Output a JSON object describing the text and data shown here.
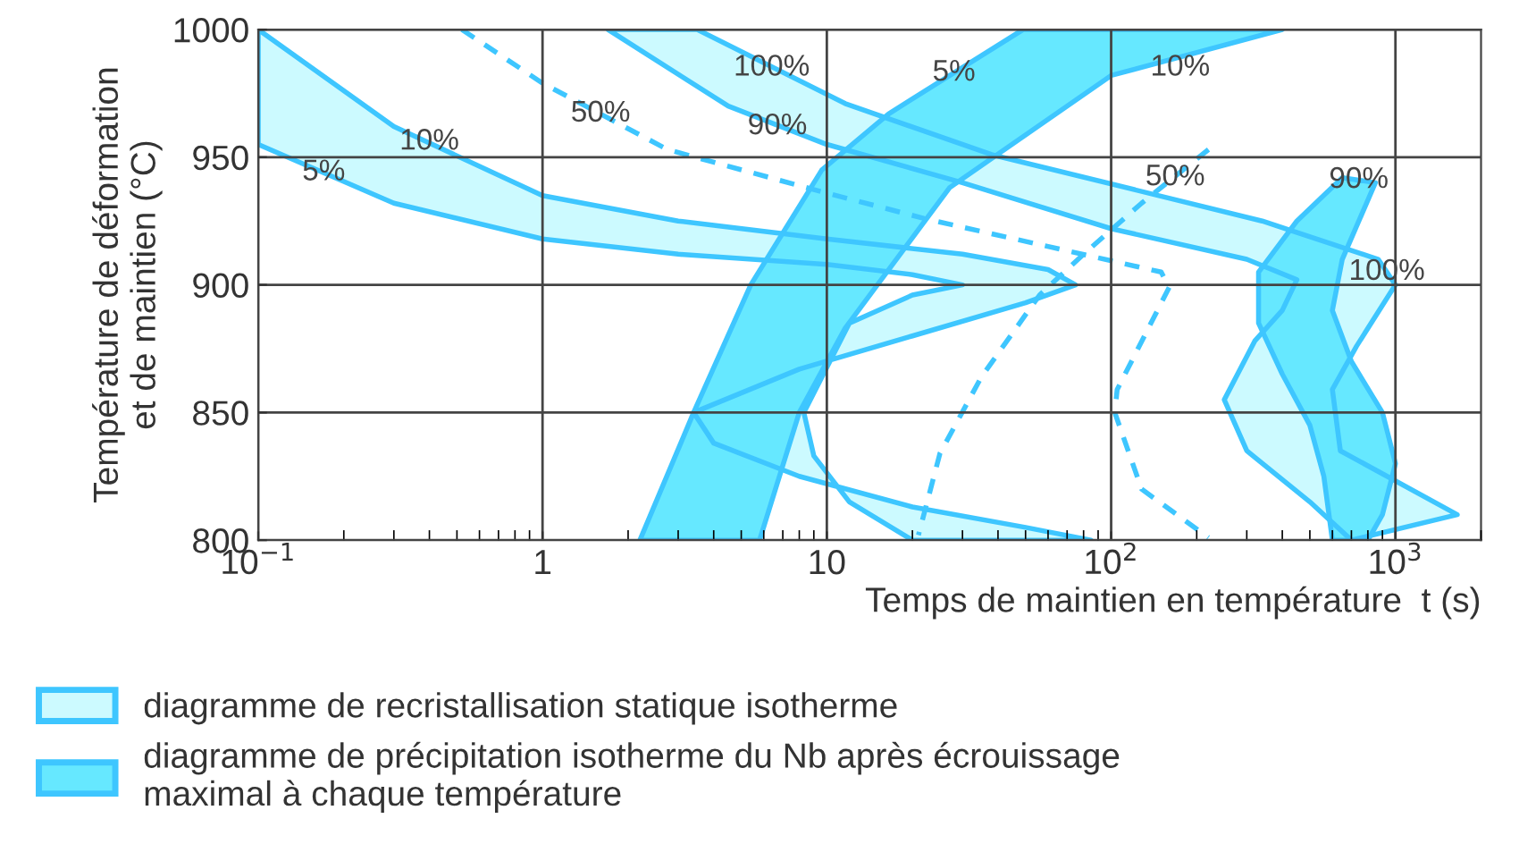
{
  "chart_data": {
    "type": "line",
    "xlabel": "Temps de maintien en température  t (s)",
    "ylabel": "Température de déformation\net de maintien (°C)",
    "log": "x",
    "grid": true,
    "legend": "bottom",
    "xlim": [
      0.1,
      2000
    ],
    "xticks": [
      {
        "value": 0.1,
        "label": "10$^{−1}$"
      },
      1,
      10,
      {
        "value": 100,
        "label": "10$^{2}$"
      },
      {
        "value": 1000,
        "label": "10$^{3}$"
      }
    ],
    "ylim": [
      800,
      1000
    ],
    "yticks": [
      800,
      850,
      900,
      950,
      1000
    ],
    "series": [
      {
        "type": "area",
        "name": "diagramme de recristallisation statique isotherme",
        "color": "#ccfaff",
        "x": [
          0.1,
          0.3,
          1,
          3,
          10,
          20,
          30,
          20,
          12,
          8.3,
          9,
          12,
          20,
          85,
          50,
          20,
          8,
          4,
          3.4,
          8,
          20,
          50,
          75,
          60,
          30,
          10,
          3,
          1,
          0.3,
          0.1
        ],
        "values": [
          955,
          932,
          918,
          912,
          908,
          904,
          900,
          896,
          885,
          850,
          833,
          815,
          800,
          800,
          805,
          813,
          825,
          838,
          850,
          867,
          880,
          893,
          900,
          906,
          912,
          918,
          925,
          935,
          962,
          1000
        ]
      },
      {
        "type": "area",
        "color": "#ccfaff",
        "x": [
          1.7,
          4.5,
          10,
          30,
          100,
          300,
          450,
          400,
          320,
          250,
          300,
          500,
          700,
          1650,
          640,
          600,
          730,
          1000,
          870,
          340,
          38,
          11.6,
          3.5
        ],
        "values": [
          1000,
          970,
          955,
          940,
          922,
          910,
          902,
          890,
          878,
          855,
          835,
          815,
          800,
          810,
          835,
          859,
          876,
          900,
          910,
          925,
          951,
          971,
          1000
        ]
      },
      {
        "type": "area",
        "name": "diagramme de précipitation isotherme du Nb après écrouissage\nmaximal à chaque température",
        "color": "#66e8ff",
        "x": [
          2.2,
          3.4,
          5.4,
          9.6,
          16.5,
          49,
          400,
          100,
          27,
          11.6,
          8,
          5.8
        ],
        "values": [
          800,
          850,
          900,
          945,
          967,
          1000,
          1000,
          982,
          938,
          883,
          850,
          800
        ]
      },
      {
        "type": "area",
        "color": "#66e8ff",
        "x": [
          650,
          450,
          330,
          330,
          400,
          500,
          560,
          600,
          800,
          900,
          1000,
          900,
          700,
          600,
          650,
          850
        ],
        "values": [
          942,
          925,
          905,
          885,
          865,
          845,
          825,
          800,
          800,
          810,
          830,
          850,
          870,
          890,
          910,
          940
        ]
      },
      {
        "color": "#3ec6ff",
        "line_style": "dashed",
        "x": [
          0.52,
          1,
          2.75,
          9.2,
          22,
          150,
          160,
          105,
          103,
          128,
          220
        ],
        "values": [
          1000,
          979,
          953,
          937,
          926,
          905,
          899,
          859,
          850,
          820,
          801
        ]
      },
      {
        "color": "#3ec6ff",
        "line_style": "dashed",
        "x": [
          220,
          128,
          80,
          56,
          35,
          25,
          21
        ],
        "values": [
          953,
          932,
          912,
          896,
          864,
          834,
          802
        ]
      }
    ],
    "annotations": [
      {
        "text": "10%",
        "x": 0.4,
        "y": 956
      },
      {
        "text": "5%",
        "x": 0.17,
        "y": 944
      },
      {
        "text": "50%",
        "x": 1.6,
        "y": 967
      },
      {
        "text": "90%",
        "x": 6.7,
        "y": 962
      },
      {
        "text": "100%",
        "x": 6.4,
        "y": 985
      },
      {
        "text": "5%",
        "x": 28,
        "y": 983
      },
      {
        "text": "10%",
        "x": 175,
        "y": 985
      },
      {
        "text": "50%",
        "x": 168,
        "y": 942
      },
      {
        "text": "90%",
        "x": 743,
        "y": 941
      },
      {
        "text": "100%",
        "x": 933,
        "y": 905
      }
    ]
  }
}
